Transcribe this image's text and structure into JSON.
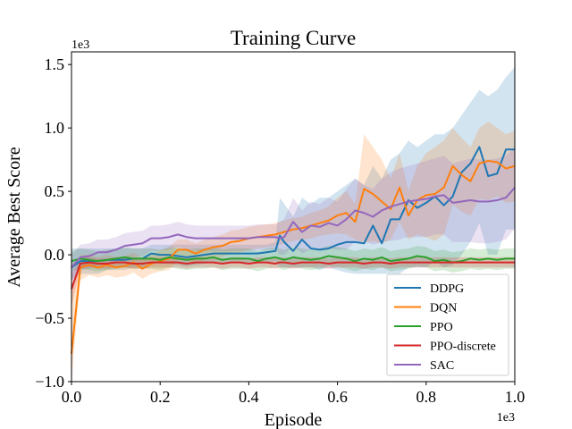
{
  "chart_data": {
    "type": "line",
    "title": "Training Curve",
    "xlabel": "Episode",
    "ylabel": "Average Best Score",
    "x_multiplier": "1e3",
    "y_multiplier": "1e3",
    "xlim": [
      0,
      1.0
    ],
    "ylim": [
      -1.0,
      1.6
    ],
    "x_ticks": [
      "0.0",
      "0.2",
      "0.4",
      "0.6",
      "0.8",
      "1.0"
    ],
    "y_ticks": [
      "−1.0",
      "−0.5",
      "0.0",
      "0.5",
      "1.0",
      "1.5"
    ],
    "x_tick_values": [
      0,
      0.2,
      0.4,
      0.6,
      0.8,
      1.0
    ],
    "y_tick_values": [
      -1.0,
      -0.5,
      0.0,
      0.5,
      1.0,
      1.5
    ],
    "legend_position": "lower-right",
    "grid": false,
    "x": [
      0,
      0.02,
      0.04,
      0.06,
      0.08,
      0.1,
      0.12,
      0.14,
      0.16,
      0.18,
      0.2,
      0.22,
      0.24,
      0.26,
      0.28,
      0.3,
      0.32,
      0.34,
      0.36,
      0.38,
      0.4,
      0.42,
      0.44,
      0.46,
      0.47,
      0.48,
      0.5,
      0.52,
      0.54,
      0.56,
      0.58,
      0.6,
      0.62,
      0.64,
      0.66,
      0.68,
      0.7,
      0.72,
      0.74,
      0.76,
      0.78,
      0.8,
      0.82,
      0.84,
      0.86,
      0.88,
      0.9,
      0.92,
      0.94,
      0.96,
      0.98,
      1.0
    ],
    "series": [
      {
        "name": "DDPG",
        "color": "#1f77b4",
        "values": [
          -0.1,
          -0.05,
          -0.05,
          -0.05,
          -0.04,
          -0.04,
          -0.04,
          -0.03,
          -0.03,
          0.01,
          0.0,
          0.0,
          -0.01,
          -0.02,
          -0.01,
          0.0,
          0.01,
          0.01,
          0.01,
          0.01,
          0.01,
          0.01,
          0.02,
          0.03,
          0.15,
          0.1,
          0.03,
          0.12,
          0.05,
          0.04,
          0.05,
          0.08,
          0.1,
          0.1,
          0.09,
          0.23,
          0.09,
          0.28,
          0.28,
          0.43,
          0.37,
          0.41,
          0.46,
          0.39,
          0.46,
          0.65,
          0.72,
          0.85,
          0.62,
          0.64,
          0.83,
          0.83
        ],
        "upper": [
          0.05,
          0.05,
          0.05,
          0.05,
          0.05,
          0.05,
          0.05,
          0.05,
          0.05,
          0.08,
          0.08,
          0.08,
          0.08,
          0.08,
          0.08,
          0.08,
          0.08,
          0.08,
          0.08,
          0.08,
          0.08,
          0.08,
          0.08,
          0.1,
          0.45,
          0.4,
          0.3,
          0.45,
          0.4,
          0.45,
          0.45,
          0.5,
          0.55,
          0.6,
          0.55,
          0.7,
          0.6,
          0.75,
          0.8,
          0.9,
          0.85,
          0.9,
          0.95,
          0.95,
          1.0,
          1.1,
          1.2,
          1.3,
          1.25,
          1.3,
          1.4,
          1.48
        ],
        "lower": [
          -0.2,
          -0.15,
          -0.15,
          -0.15,
          -0.12,
          -0.12,
          -0.12,
          -0.1,
          -0.1,
          -0.05,
          -0.07,
          -0.07,
          -0.08,
          -0.09,
          -0.08,
          -0.07,
          -0.06,
          -0.06,
          -0.06,
          -0.06,
          -0.06,
          -0.06,
          -0.06,
          -0.05,
          -0.1,
          -0.1,
          -0.1,
          -0.1,
          -0.1,
          -0.12,
          -0.1,
          -0.12,
          -0.14,
          -0.15,
          -0.15,
          -0.15,
          -0.15,
          -0.15,
          -0.15,
          -0.1,
          -0.1,
          -0.1,
          -0.05,
          -0.1,
          -0.08,
          0.0,
          0.1,
          0.25,
          0.0,
          0.0,
          0.2,
          0.2
        ]
      },
      {
        "name": "DQN",
        "color": "#ff7f0e",
        "values": [
          -0.78,
          -0.1,
          -0.08,
          -0.1,
          -0.08,
          -0.1,
          -0.09,
          -0.06,
          -0.11,
          -0.07,
          -0.05,
          -0.03,
          0.04,
          0.04,
          0.01,
          0.04,
          0.06,
          0.07,
          0.1,
          0.11,
          0.13,
          0.14,
          0.15,
          0.16,
          0.17,
          0.18,
          0.2,
          0.21,
          0.23,
          0.25,
          0.27,
          0.31,
          0.33,
          0.26,
          0.52,
          0.48,
          0.42,
          0.36,
          0.53,
          0.31,
          0.43,
          0.47,
          0.48,
          0.53,
          0.7,
          0.63,
          0.58,
          0.72,
          0.74,
          0.73,
          0.68,
          0.7
        ],
        "upper": [
          -0.3,
          0.0,
          0.0,
          -0.02,
          0.0,
          -0.02,
          -0.01,
          0.02,
          -0.03,
          0.01,
          0.03,
          0.06,
          0.12,
          0.12,
          0.09,
          0.12,
          0.14,
          0.16,
          0.19,
          0.2,
          0.22,
          0.23,
          0.24,
          0.25,
          0.26,
          0.27,
          0.29,
          0.3,
          0.33,
          0.35,
          0.38,
          0.45,
          0.5,
          0.4,
          0.95,
          0.85,
          0.75,
          0.6,
          0.8,
          0.5,
          0.7,
          0.8,
          0.85,
          0.9,
          1.0,
          0.92,
          0.85,
          1.0,
          1.05,
          1.0,
          0.95,
          0.98
        ],
        "lower": [
          -1.0,
          -0.2,
          -0.16,
          -0.18,
          -0.16,
          -0.18,
          -0.17,
          -0.14,
          -0.19,
          -0.15,
          -0.13,
          -0.12,
          -0.04,
          -0.04,
          -0.07,
          -0.04,
          -0.02,
          -0.02,
          0.01,
          0.02,
          0.04,
          0.05,
          0.06,
          0.07,
          0.08,
          0.09,
          0.11,
          0.12,
          0.13,
          0.15,
          0.16,
          0.17,
          0.16,
          0.12,
          0.09,
          0.11,
          0.09,
          0.12,
          0.26,
          0.12,
          0.16,
          0.14,
          0.11,
          0.16,
          0.4,
          0.34,
          0.31,
          0.44,
          0.43,
          0.46,
          0.41,
          0.42
        ]
      },
      {
        "name": "PPO",
        "color": "#2ca02c",
        "values": [
          -0.05,
          -0.03,
          -0.04,
          -0.05,
          -0.04,
          -0.03,
          -0.02,
          -0.03,
          -0.03,
          -0.03,
          -0.04,
          -0.02,
          -0.03,
          -0.04,
          -0.03,
          -0.03,
          -0.02,
          -0.04,
          -0.03,
          -0.03,
          -0.03,
          -0.05,
          -0.03,
          -0.02,
          -0.03,
          -0.04,
          -0.02,
          -0.03,
          -0.04,
          -0.03,
          -0.01,
          -0.02,
          -0.03,
          -0.05,
          -0.03,
          -0.04,
          -0.02,
          -0.05,
          -0.04,
          -0.03,
          -0.01,
          -0.02,
          -0.05,
          -0.04,
          -0.06,
          -0.05,
          -0.03,
          -0.04,
          -0.03,
          -0.04,
          -0.03,
          -0.03
        ],
        "upper": [
          0.03,
          0.05,
          0.04,
          0.03,
          0.04,
          0.05,
          0.06,
          0.05,
          0.05,
          0.05,
          0.04,
          0.06,
          0.05,
          0.04,
          0.05,
          0.05,
          0.06,
          0.04,
          0.05,
          0.05,
          0.05,
          0.03,
          0.05,
          0.06,
          0.05,
          0.04,
          0.06,
          0.05,
          0.04,
          0.05,
          0.07,
          0.06,
          0.05,
          0.03,
          0.05,
          0.04,
          0.06,
          0.03,
          0.04,
          0.05,
          0.07,
          0.06,
          0.03,
          0.04,
          0.02,
          0.03,
          0.05,
          0.04,
          0.05,
          0.04,
          0.05,
          0.05
        ],
        "lower": [
          -0.13,
          -0.11,
          -0.12,
          -0.13,
          -0.12,
          -0.11,
          -0.1,
          -0.11,
          -0.11,
          -0.11,
          -0.12,
          -0.1,
          -0.11,
          -0.12,
          -0.11,
          -0.11,
          -0.1,
          -0.12,
          -0.11,
          -0.11,
          -0.11,
          -0.13,
          -0.11,
          -0.1,
          -0.11,
          -0.12,
          -0.1,
          -0.11,
          -0.12,
          -0.11,
          -0.09,
          -0.1,
          -0.11,
          -0.13,
          -0.11,
          -0.12,
          -0.1,
          -0.13,
          -0.12,
          -0.11,
          -0.09,
          -0.1,
          -0.13,
          -0.12,
          -0.14,
          -0.13,
          -0.11,
          -0.12,
          -0.11,
          -0.12,
          -0.11,
          -0.11
        ]
      },
      {
        "name": "PPO-discrete",
        "color": "#d62728",
        "values": [
          -0.27,
          -0.07,
          -0.06,
          -0.07,
          -0.07,
          -0.06,
          -0.06,
          -0.07,
          -0.07,
          -0.06,
          -0.06,
          -0.06,
          -0.06,
          -0.07,
          -0.06,
          -0.06,
          -0.06,
          -0.07,
          -0.06,
          -0.06,
          -0.07,
          -0.06,
          -0.06,
          -0.07,
          -0.06,
          -0.06,
          -0.07,
          -0.06,
          -0.06,
          -0.06,
          -0.07,
          -0.06,
          -0.06,
          -0.06,
          -0.07,
          -0.06,
          -0.06,
          -0.07,
          -0.06,
          -0.06,
          -0.06,
          -0.06,
          -0.06,
          -0.06,
          -0.06,
          -0.06,
          -0.06,
          -0.06,
          -0.06,
          -0.06,
          -0.06,
          -0.06
        ],
        "upper": [
          -0.15,
          -0.03,
          -0.02,
          -0.03,
          -0.03,
          -0.02,
          -0.02,
          -0.03,
          -0.03,
          -0.02,
          -0.02,
          -0.02,
          -0.02,
          -0.03,
          -0.02,
          -0.02,
          -0.02,
          -0.03,
          -0.02,
          -0.02,
          -0.03,
          -0.02,
          -0.02,
          -0.03,
          -0.02,
          -0.02,
          -0.03,
          -0.02,
          -0.02,
          -0.02,
          -0.03,
          -0.02,
          -0.02,
          -0.02,
          -0.03,
          -0.02,
          -0.02,
          -0.03,
          -0.02,
          -0.02,
          -0.02,
          -0.02,
          -0.02,
          -0.02,
          -0.02,
          -0.02,
          -0.02,
          -0.02,
          -0.02,
          -0.02,
          -0.02,
          -0.02
        ],
        "lower": [
          -0.4,
          -0.11,
          -0.1,
          -0.11,
          -0.11,
          -0.1,
          -0.1,
          -0.11,
          -0.11,
          -0.1,
          -0.1,
          -0.1,
          -0.1,
          -0.11,
          -0.1,
          -0.1,
          -0.1,
          -0.11,
          -0.1,
          -0.1,
          -0.11,
          -0.1,
          -0.1,
          -0.11,
          -0.1,
          -0.1,
          -0.11,
          -0.1,
          -0.1,
          -0.1,
          -0.11,
          -0.1,
          -0.1,
          -0.1,
          -0.11,
          -0.1,
          -0.1,
          -0.11,
          -0.1,
          -0.1,
          -0.1,
          -0.1,
          -0.1,
          -0.1,
          -0.1,
          -0.1,
          -0.1,
          -0.1,
          -0.1,
          -0.1,
          -0.1,
          -0.1
        ]
      },
      {
        "name": "SAC",
        "color": "#9467bd",
        "values": [
          -0.1,
          -0.02,
          -0.01,
          0.02,
          0.02,
          0.04,
          0.07,
          0.08,
          0.09,
          0.13,
          0.13,
          0.14,
          0.16,
          0.14,
          0.13,
          0.13,
          0.13,
          0.13,
          0.13,
          0.13,
          0.13,
          0.14,
          0.14,
          0.14,
          0.13,
          0.14,
          0.26,
          0.18,
          0.23,
          0.22,
          0.25,
          0.23,
          0.28,
          0.35,
          0.33,
          0.3,
          0.35,
          0.38,
          0.4,
          0.42,
          0.43,
          0.44,
          0.46,
          0.47,
          0.41,
          0.42,
          0.43,
          0.42,
          0.42,
          0.43,
          0.45,
          0.53
        ],
        "upper": [
          0.0,
          0.08,
          0.09,
          0.12,
          0.12,
          0.14,
          0.17,
          0.18,
          0.19,
          0.23,
          0.23,
          0.24,
          0.26,
          0.24,
          0.23,
          0.23,
          0.23,
          0.23,
          0.23,
          0.23,
          0.23,
          0.24,
          0.24,
          0.24,
          0.26,
          0.28,
          0.45,
          0.35,
          0.42,
          0.4,
          0.45,
          0.42,
          0.52,
          0.6,
          0.55,
          0.52,
          0.6,
          0.65,
          0.68,
          0.7,
          0.72,
          0.74,
          0.76,
          0.78,
          0.72,
          0.74,
          0.76,
          0.75,
          0.75,
          0.76,
          0.78,
          0.85
        ],
        "lower": [
          -0.2,
          -0.12,
          -0.11,
          -0.08,
          -0.08,
          -0.06,
          -0.03,
          -0.02,
          -0.01,
          0.03,
          0.03,
          0.04,
          0.06,
          0.04,
          0.03,
          0.03,
          0.03,
          0.03,
          0.03,
          0.03,
          0.03,
          0.04,
          0.04,
          0.04,
          0.0,
          0.0,
          0.07,
          0.01,
          0.04,
          0.04,
          0.05,
          0.04,
          0.04,
          0.1,
          0.11,
          0.08,
          0.1,
          0.11,
          0.12,
          0.14,
          0.14,
          0.14,
          0.16,
          0.16,
          0.1,
          0.1,
          0.1,
          0.09,
          0.09,
          0.1,
          0.12,
          0.21
        ]
      }
    ]
  }
}
